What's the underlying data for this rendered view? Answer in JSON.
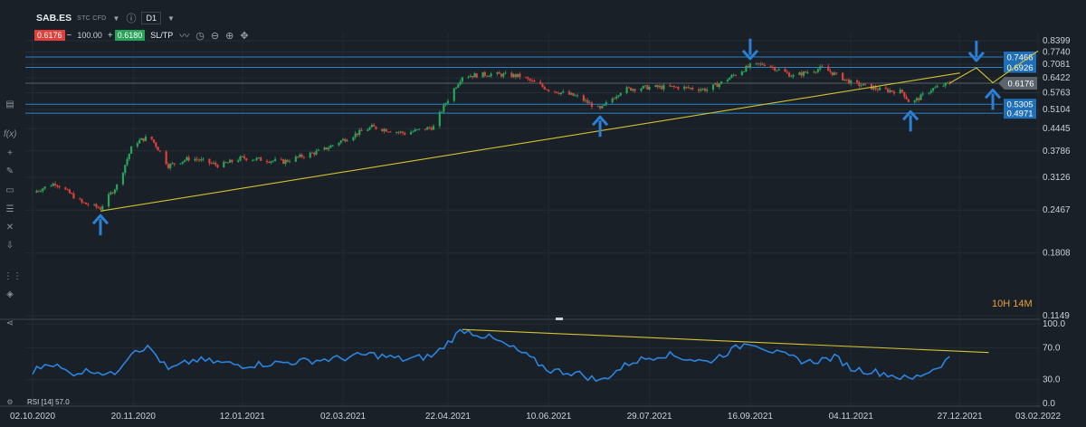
{
  "toolbar": {
    "symbol": "SAB.ES",
    "subtitle": "STC CFD",
    "timeframe": "D1",
    "bid": "0.6176",
    "ask": "0.6180",
    "quantity": "100.00",
    "minus": "−",
    "plus": "+",
    "sltp": "SL/TP",
    "icons": [
      "chevron-down-icon",
      "info-icon",
      "line-chart-icon",
      "clock-icon",
      "zoom-out-icon",
      "zoom-in-icon",
      "move-icon"
    ]
  },
  "sidebar_icons": [
    "menu-icon",
    "fx-icon",
    "crosshair-icon",
    "pencil-icon",
    "rectangle-icon",
    "fibonacci-icon",
    "cross-icon",
    "channel-icon",
    "arrow-down-icon",
    "more-icon",
    "layers-icon",
    "share-icon"
  ],
  "timer_text": "10H 14M",
  "rsi_label": "RSI [14] 57.0",
  "chart_data": [
    {
      "type": "candlestick",
      "title": "SAB.ES",
      "y_scale": "log",
      "ylim": [
        0.1149,
        0.8399
      ],
      "yticks": [
        "0.8399",
        "0.7740",
        "0.7081",
        "0.6422",
        "0.5763",
        "0.5104",
        "0.4445",
        "0.3786",
        "0.3126",
        "0.2467",
        "0.1808",
        "0.1149"
      ],
      "xticks": [
        "02.10.2020",
        "20.11.2020",
        "12.01.2021",
        "02.03.2021",
        "22.04.2021",
        "10.06.2021",
        "29.07.2021",
        "16.09.2021",
        "04.11.2021",
        "27.12.2021",
        "03.02.2022"
      ],
      "price_path_keypoints": [
        [
          "2020-10-02",
          0.28
        ],
        [
          "2020-10-13",
          0.3
        ],
        [
          "2020-10-26",
          0.26
        ],
        [
          "2020-11-04",
          0.25
        ],
        [
          "2020-11-13",
          0.3
        ],
        [
          "2020-11-20",
          0.4
        ],
        [
          "2020-11-28",
          0.42
        ],
        [
          "2020-12-07",
          0.34
        ],
        [
          "2020-12-18",
          0.36
        ],
        [
          "2021-01-01",
          0.34
        ],
        [
          "2021-01-12",
          0.36
        ],
        [
          "2021-02-01",
          0.35
        ],
        [
          "2021-02-20",
          0.38
        ],
        [
          "2021-03-02",
          0.41
        ],
        [
          "2021-03-16",
          0.45
        ],
        [
          "2021-04-01",
          0.43
        ],
        [
          "2021-04-15",
          0.45
        ],
        [
          "2021-04-22",
          0.55
        ],
        [
          "2021-04-29",
          0.65
        ],
        [
          "2021-05-13",
          0.66
        ],
        [
          "2021-05-27",
          0.65
        ],
        [
          "2021-06-10",
          0.59
        ],
        [
          "2021-06-24",
          0.56
        ],
        [
          "2021-07-05",
          0.51
        ],
        [
          "2021-07-16",
          0.59
        ],
        [
          "2021-07-29",
          0.6
        ],
        [
          "2021-08-12",
          0.6
        ],
        [
          "2021-08-26",
          0.59
        ],
        [
          "2021-09-02",
          0.62
        ],
        [
          "2021-09-16",
          0.7
        ],
        [
          "2021-09-23",
          0.71
        ],
        [
          "2021-10-07",
          0.65
        ],
        [
          "2021-10-21",
          0.69
        ],
        [
          "2021-11-04",
          0.62
        ],
        [
          "2021-11-18",
          0.59
        ],
        [
          "2021-11-29",
          0.58
        ],
        [
          "2021-12-03",
          0.53
        ],
        [
          "2021-12-13",
          0.59
        ],
        [
          "2021-12-22",
          0.6176
        ]
      ],
      "horizontal_levels": [
        {
          "value": 0.7466,
          "label": "0.7466"
        },
        {
          "value": 0.6926,
          "label": "0.6926"
        },
        {
          "value": 0.5305,
          "label": "0.5305"
        },
        {
          "value": 0.4971,
          "label": "0.4971"
        }
      ],
      "current_price": {
        "value": 0.6176,
        "label": "0.6176"
      },
      "trendline": [
        [
          "2020-11-04",
          0.245
        ],
        [
          "2021-12-27",
          0.665
        ]
      ],
      "projection": [
        [
          "2021-12-22",
          0.618
        ],
        [
          "2022-01-04",
          0.69
        ],
        [
          "2022-01-12",
          0.62
        ],
        [
          "2022-02-03",
          0.78
        ]
      ],
      "arrows": [
        {
          "date": "2020-11-04",
          "direction": "up"
        },
        {
          "date": "2021-07-05",
          "direction": "up"
        },
        {
          "date": "2021-09-16",
          "direction": "down"
        },
        {
          "date": "2021-12-03",
          "direction": "up"
        },
        {
          "date": "2022-01-04",
          "direction": "down"
        },
        {
          "date": "2022-01-12",
          "direction": "up"
        }
      ],
      "colors": {
        "up": "#26a65b",
        "down": "#e0403b",
        "levels": "#2a82c9",
        "trend": "#d4c230",
        "arrows": "#2b7fd4",
        "price_box": "#5b636b"
      }
    },
    {
      "type": "line",
      "name": "RSI [14] 57.0",
      "ylim": [
        0,
        100
      ],
      "yticks": [
        "100.0",
        "70.0",
        "30.0",
        "0.0"
      ],
      "keypoints": [
        [
          "2020-10-02",
          40
        ],
        [
          "2020-10-10",
          52
        ],
        [
          "2020-10-20",
          38
        ],
        [
          "2020-11-01",
          42
        ],
        [
          "2020-11-10",
          35
        ],
        [
          "2020-11-20",
          68
        ],
        [
          "2020-11-28",
          70
        ],
        [
          "2020-12-07",
          42
        ],
        [
          "2020-12-20",
          55
        ],
        [
          "2021-01-12",
          48
        ],
        [
          "2021-02-05",
          52
        ],
        [
          "2021-03-02",
          57
        ],
        [
          "2021-03-15",
          62
        ],
        [
          "2021-04-01",
          55
        ],
        [
          "2021-04-15",
          60
        ],
        [
          "2021-04-29",
          93
        ],
        [
          "2021-05-13",
          82
        ],
        [
          "2021-05-27",
          65
        ],
        [
          "2021-06-10",
          42
        ],
        [
          "2021-06-24",
          38
        ],
        [
          "2021-07-05",
          28
        ],
        [
          "2021-07-20",
          52
        ],
        [
          "2021-08-05",
          62
        ],
        [
          "2021-08-26",
          52
        ],
        [
          "2021-09-16",
          78
        ],
        [
          "2021-09-30",
          62
        ],
        [
          "2021-10-14",
          52
        ],
        [
          "2021-10-28",
          58
        ],
        [
          "2021-11-04",
          44
        ],
        [
          "2021-11-20",
          38
        ],
        [
          "2021-12-03",
          30
        ],
        [
          "2021-12-15",
          44
        ],
        [
          "2021-12-22",
          57
        ]
      ],
      "trendline": [
        [
          "2021-04-29",
          93
        ],
        [
          "2022-01-10",
          64
        ]
      ],
      "colors": {
        "line": "#2a84e0",
        "trend": "#d4c230"
      }
    }
  ]
}
